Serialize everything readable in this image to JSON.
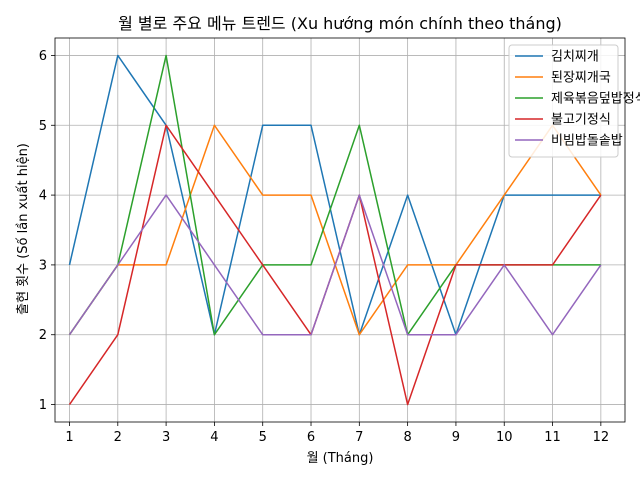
{
  "chart_data": {
    "type": "line",
    "title": "월 별로 주요 메뉴 트렌드 (Xu hướng món chính theo tháng)",
    "xlabel": "월 (Tháng)",
    "ylabel": "출현 횟수 (Số lần xuất hiện)",
    "x": [
      1,
      2,
      3,
      4,
      5,
      6,
      7,
      8,
      9,
      10,
      11,
      12
    ],
    "xlim": [
      0.7,
      12.5
    ],
    "ylim": [
      0.75,
      6.25
    ],
    "yticks": [
      1,
      2,
      3,
      4,
      5,
      6
    ],
    "grid": true,
    "legend_position": "top-right",
    "series": [
      {
        "name": "김치찌개",
        "color": "#1f77b4",
        "values": [
          3,
          6,
          5,
          2,
          5,
          5,
          2,
          4,
          2,
          4,
          4,
          4
        ]
      },
      {
        "name": "된장찌개국",
        "color": "#ff7f0e",
        "values": [
          2,
          3,
          3,
          5,
          4,
          4,
          2,
          3,
          3,
          4,
          5,
          4
        ]
      },
      {
        "name": "제육볶음덮밥정식",
        "color": "#2ca02c",
        "values": [
          2,
          3,
          6,
          2,
          3,
          3,
          5,
          2,
          3,
          3,
          3,
          3
        ]
      },
      {
        "name": "불고기정식",
        "color": "#d62728",
        "values": [
          1,
          2,
          5,
          4,
          3,
          2,
          4,
          1,
          3,
          3,
          3,
          4
        ]
      },
      {
        "name": "비빔밥돌솥밥",
        "color": "#9467bd",
        "values": [
          2,
          3,
          4,
          3,
          2,
          2,
          4,
          2,
          2,
          3,
          2,
          3
        ]
      }
    ]
  }
}
